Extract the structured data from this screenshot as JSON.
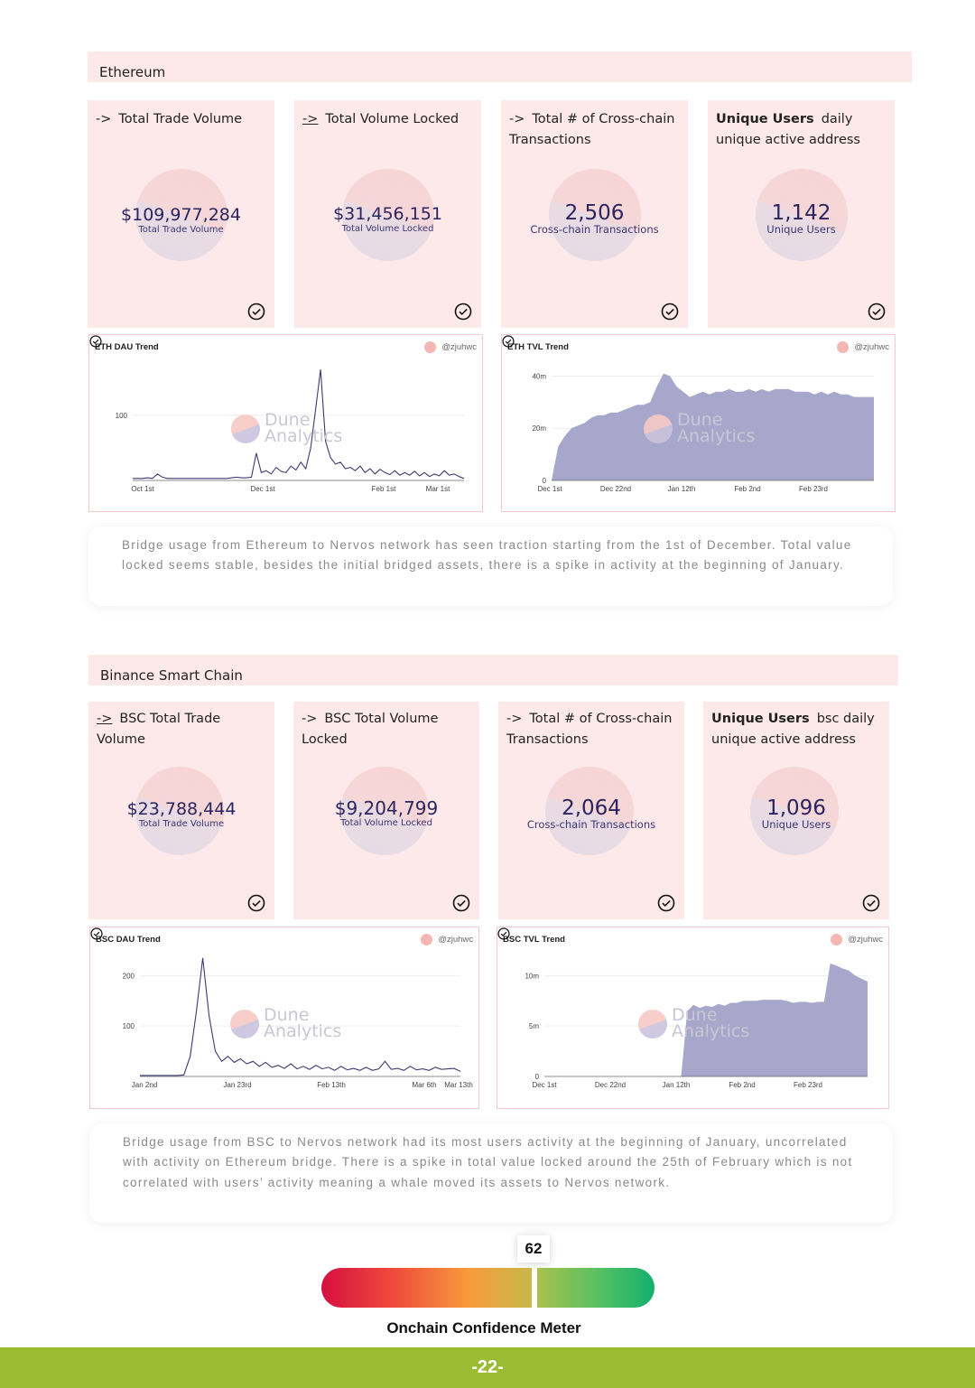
{
  "sections": [
    {
      "title": "Ethereum",
      "cards": [
        {
          "arrow": "->",
          "bold": "",
          "heading": "Total Trade Volume",
          "value": "$109,977,284",
          "label": "Total Trade Volume"
        },
        {
          "arrow": "->",
          "bold": "",
          "heading": "Total Volume Locked",
          "value": "$31,456,151",
          "label": "Total Volume Locked"
        },
        {
          "arrow": "->",
          "bold": "",
          "heading": "Total # of Cross-chain Transactions",
          "value": "2,506",
          "label": "Cross-chain Transactions"
        },
        {
          "arrow": "",
          "bold": "Unique Users",
          "heading": "daily unique active address",
          "value": "1,142",
          "label": "Unique Users"
        }
      ],
      "charts": [
        {
          "title": "ETH DAU Trend",
          "user": "@zjuhwc",
          "watermark": [
            "Dune",
            "Analytics"
          ]
        },
        {
          "title": "ETH TVL Trend",
          "user": "@zjuhwc",
          "watermark": [
            "Dune",
            "Analytics"
          ]
        }
      ],
      "note": "Bridge usage from Ethereum to Nervos network has seen traction starting from the 1st of December. Total value locked seems stable, besides the initial bridged assets, there is a spike in activity at the beginning of January."
    },
    {
      "title": "Binance Smart Chain",
      "cards": [
        {
          "arrow": "->",
          "bold": "",
          "heading": "BSC Total Trade Volume",
          "value": "$23,788,444",
          "label": "Total Trade Volume"
        },
        {
          "arrow": "->",
          "bold": "",
          "heading": "BSC Total Volume Locked",
          "value": "$9,204,799",
          "label": "Total Volume Locked"
        },
        {
          "arrow": "->",
          "bold": "",
          "heading": "Total # of Cross-chain Transactions",
          "value": "2,064",
          "label": "Cross-chain Transactions"
        },
        {
          "arrow": "",
          "bold": "Unique Users",
          "heading": "bsc daily unique active address",
          "value": "1,096",
          "label": "Unique Users"
        }
      ],
      "charts": [
        {
          "title": "BSC DAU Trend",
          "user": "@zjuhwc",
          "watermark": [
            "Dune",
            "Analytics"
          ]
        },
        {
          "title": "BSC TVL Trend",
          "user": "@zjuhwc",
          "watermark": [
            "Dune",
            "Analytics"
          ]
        }
      ],
      "note": "Bridge usage from BSC to Nervos network had its most users activity at the beginning of January, uncorrelated with activity on Ethereum bridge. There is a spike in total value locked around the 25th of February which is not correlated with users’ activity meaning a whale moved its assets to Nervos network."
    }
  ],
  "meter": {
    "value": "62",
    "label": "Onchain Confidence Meter"
  },
  "footer": {
    "page": "-22-"
  },
  "chart_data": [
    {
      "type": "line",
      "title": "ETH DAU Trend",
      "x_ticks": [
        "Oct 1st",
        "Dec 1st",
        "Feb 1st",
        "Mar 1st"
      ],
      "y_ticks": [
        "100"
      ],
      "series": [
        {
          "values": [
            3,
            3,
            3,
            4,
            3,
            10,
            5,
            3,
            3,
            3,
            3,
            3,
            3,
            3,
            3,
            3,
            3,
            3,
            3,
            3,
            4,
            5,
            4,
            4,
            5,
            42,
            12,
            15,
            10,
            20,
            14,
            12,
            22,
            16,
            28,
            18,
            50,
            110,
            170,
            60,
            35,
            25,
            28,
            18,
            20,
            15,
            22,
            12,
            18,
            10,
            17,
            12,
            9,
            15,
            8,
            12,
            8,
            14,
            7,
            12,
            6,
            10,
            7,
            15,
            8,
            10,
            6,
            3
          ]
        }
      ],
      "color": "#3d3a73"
    },
    {
      "type": "area",
      "title": "ETH TVL Trend",
      "x_ticks": [
        "Dec 1st",
        "Dec 22nd",
        "Jan 12th",
        "Feb 2nd",
        "Feb 23rd"
      ],
      "y_ticks": [
        "40m",
        "20m",
        "0"
      ],
      "series": [
        {
          "values": [
            0,
            13,
            17,
            20,
            21,
            22,
            24,
            25,
            25,
            26,
            26,
            27,
            28,
            29,
            29,
            30,
            36,
            41,
            40,
            36,
            34,
            32,
            33,
            34,
            33,
            34,
            34,
            35,
            34,
            34,
            35,
            34,
            35,
            34,
            35,
            35,
            35,
            34,
            34,
            34,
            33,
            34,
            33,
            34,
            33,
            33,
            32,
            32,
            32,
            32
          ]
        }
      ],
      "color": "#a9a6cb"
    },
    {
      "type": "line",
      "title": "BSC DAU Trend",
      "x_ticks": [
        "Jan 2nd",
        "Jan 23rd",
        "Feb 13th",
        "Mar 6th",
        "Mar 13th"
      ],
      "y_ticks": [
        "200",
        "100"
      ],
      "series": [
        {
          "values": [
            2,
            2,
            2,
            2,
            2,
            2,
            2,
            3,
            40,
            130,
            235,
            120,
            50,
            30,
            40,
            28,
            35,
            25,
            30,
            20,
            28,
            18,
            22,
            16,
            25,
            15,
            20,
            14,
            22,
            15,
            18,
            12,
            20,
            13,
            16,
            12,
            18,
            12,
            15,
            30,
            14,
            16,
            12,
            20,
            13,
            15,
            12,
            18,
            14,
            15,
            16,
            10
          ]
        }
      ],
      "color": "#3d3a73"
    },
    {
      "type": "area",
      "title": "BSC TVL Trend",
      "x_ticks": [
        "Dec 1st",
        "Dec 22nd",
        "Jan 12th",
        "Feb 2nd",
        "Feb 23rd"
      ],
      "y_ticks": [
        "10m",
        "5m",
        "0"
      ],
      "series": [
        {
          "values": [
            0,
            0,
            0,
            0,
            0,
            0,
            0,
            0,
            0,
            0,
            0,
            0,
            0,
            0,
            0,
            0,
            0,
            0,
            0,
            0,
            0,
            0,
            0,
            6.5,
            7.1,
            6.8,
            7.0,
            6.9,
            7.2,
            7.0,
            7.3,
            7.3,
            7.5,
            7.5,
            7.5,
            7.6,
            7.6,
            7.6,
            7.6,
            7.5,
            7.3,
            7.4,
            7.4,
            7.3,
            7.4,
            7.4,
            11.2,
            11.0,
            10.7,
            10.5,
            10.0,
            9.7,
            9.4
          ]
        }
      ],
      "color": "#a9a6cb"
    }
  ]
}
